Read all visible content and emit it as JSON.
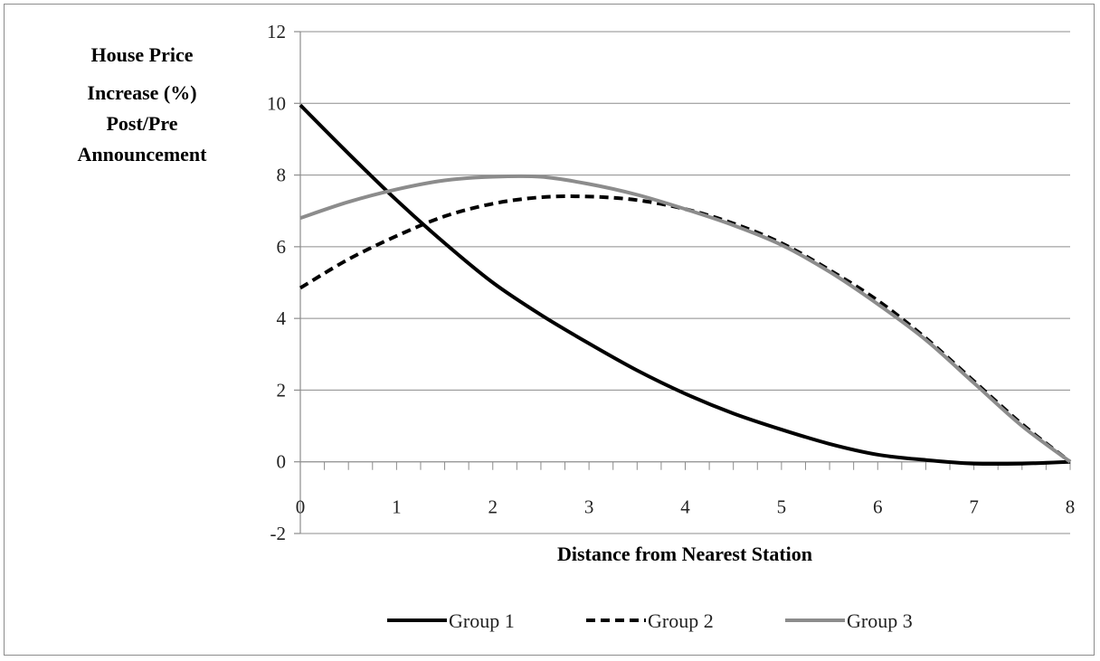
{
  "chart_data": {
    "type": "line",
    "title": "",
    "xlabel": "Distance from Nearest Station",
    "ylabel_lines": [
      "House Price",
      "Increase (%)",
      "Post/Pre",
      "Announcement"
    ],
    "xlim": [
      0,
      8
    ],
    "ylim": [
      -2,
      12
    ],
    "x_ticks": [
      0,
      1,
      2,
      3,
      4,
      5,
      6,
      7,
      8
    ],
    "y_ticks": [
      -2,
      0,
      2,
      4,
      6,
      8,
      10,
      12
    ],
    "grid": "horizontal",
    "legend_position": "bottom",
    "x": [
      0,
      0.5,
      1,
      1.5,
      2,
      2.5,
      3,
      3.5,
      4,
      4.5,
      5,
      5.5,
      6,
      6.5,
      7,
      7.5,
      8
    ],
    "series": [
      {
        "name": "Group 1",
        "style": "solid",
        "color": "#000000",
        "values": [
          9.95,
          8.6,
          7.3,
          6.1,
          5.0,
          4.1,
          3.3,
          2.55,
          1.9,
          1.35,
          0.9,
          0.5,
          0.2,
          0.05,
          -0.05,
          -0.05,
          0.0
        ]
      },
      {
        "name": "Group 2",
        "style": "dashed",
        "color": "#000000",
        "values": [
          4.85,
          5.65,
          6.3,
          6.85,
          7.2,
          7.38,
          7.4,
          7.3,
          7.05,
          6.65,
          6.1,
          5.35,
          4.5,
          3.45,
          2.25,
          1.05,
          0.0
        ]
      },
      {
        "name": "Group 3",
        "style": "solid",
        "color": "#8c8c8c",
        "values": [
          6.8,
          7.25,
          7.6,
          7.85,
          7.95,
          7.95,
          7.75,
          7.45,
          7.05,
          6.6,
          6.05,
          5.3,
          4.4,
          3.4,
          2.2,
          1.0,
          0.0
        ]
      }
    ]
  }
}
